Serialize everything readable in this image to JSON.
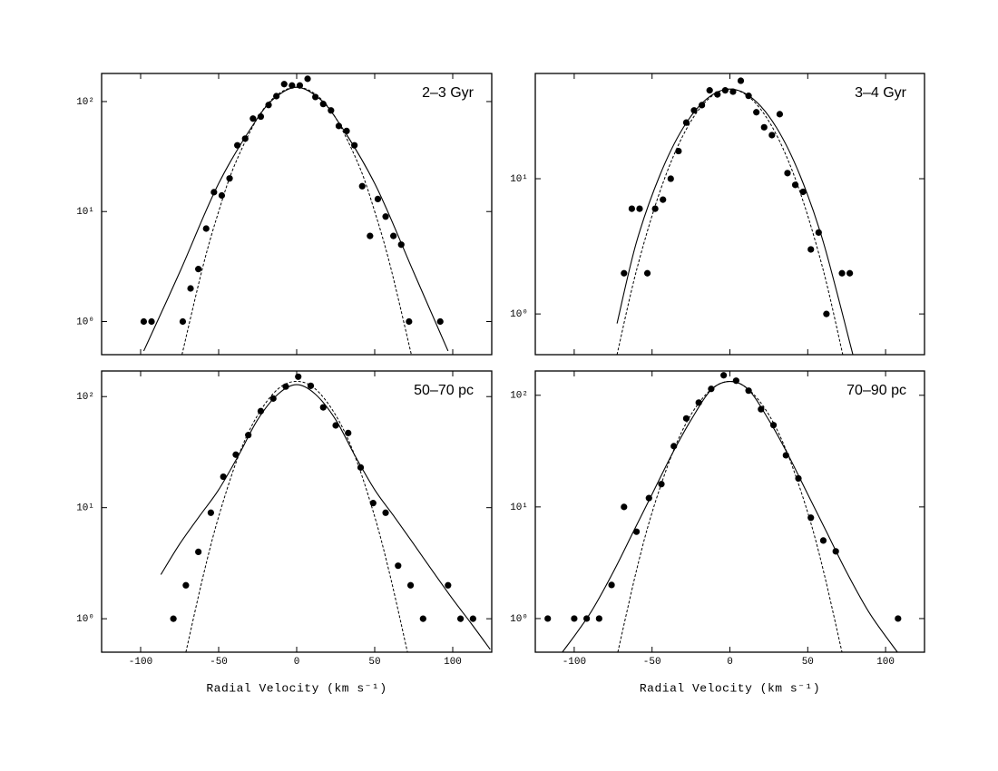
{
  "chart_data": [
    {
      "type": "scatter",
      "annotation": "2–3 Gyr",
      "yscale": "log",
      "xtick_labels": false,
      "xlim": [
        -125,
        125
      ],
      "ylim": [
        0.5,
        180
      ],
      "xticks": [
        -100,
        -50,
        0,
        50,
        100
      ],
      "yticks": [
        {
          "value": 1,
          "label": "10⁰"
        },
        {
          "value": 10,
          "label": "10¹"
        },
        {
          "value": 100,
          "label": "10²"
        }
      ],
      "series": [
        {
          "type": "scatter",
          "color": "#000000",
          "x": [
            -98,
            -93,
            -73,
            -68,
            -63,
            -58,
            -53,
            -48,
            -43,
            -38,
            -33,
            -28,
            -23,
            -18,
            -13,
            -8,
            -3,
            2,
            7,
            12,
            17,
            22,
            27,
            32,
            37,
            42,
            47,
            52,
            57,
            62,
            67,
            72,
            92
          ],
          "values": [
            1,
            1,
            1,
            2,
            3,
            7,
            15,
            14,
            20,
            40,
            46,
            70,
            73,
            93,
            112,
            144,
            140,
            140,
            161,
            110,
            95,
            83,
            60,
            54,
            40,
            17,
            6,
            13,
            9,
            6,
            5,
            1,
            1
          ]
        },
        {
          "type": "line",
          "dash": "solid",
          "color": "#000000",
          "x": [
            -98,
            -75,
            -50,
            -25,
            -12.5,
            0,
            12.5,
            25,
            50,
            75,
            97
          ],
          "values": [
            0.54,
            2.8,
            18,
            71,
            112,
            135,
            112,
            71,
            18,
            2.8,
            0.54
          ]
        },
        {
          "type": "line",
          "dash": "dashed",
          "color": "#000000",
          "x": [
            -73.5,
            -60,
            -50,
            -40,
            -25,
            -12.5,
            0,
            12.5,
            25,
            40,
            50,
            60,
            73.5
          ],
          "values": [
            0.5,
            3.2,
            10,
            26,
            71,
            115,
            135,
            115,
            71,
            26,
            10,
            3.2,
            0.5
          ]
        }
      ]
    },
    {
      "type": "scatter",
      "annotation": "3–4 Gyr",
      "yscale": "log",
      "xtick_labels": false,
      "xlim": [
        -125,
        125
      ],
      "ylim": [
        0.5,
        60
      ],
      "xticks": [
        -100,
        -50,
        0,
        50,
        100
      ],
      "yticks": [
        {
          "value": 1,
          "label": "10⁰"
        },
        {
          "value": 10,
          "label": "10¹"
        }
      ],
      "series": [
        {
          "type": "scatter",
          "color": "#000000",
          "x": [
            -68,
            -63,
            -58,
            -53,
            -48,
            -43,
            -38,
            -33,
            -28,
            -23,
            -18,
            -13,
            -8,
            -3,
            2,
            7,
            12,
            17,
            22,
            27,
            32,
            37,
            42,
            47,
            52,
            57,
            62,
            72,
            77
          ],
          "values": [
            2,
            6,
            6,
            2,
            6,
            7,
            10,
            16,
            26,
            32,
            35,
            45,
            42,
            45,
            44,
            53,
            41,
            31,
            24,
            21,
            30,
            11,
            9,
            8,
            3,
            4,
            1,
            2,
            2
          ]
        },
        {
          "type": "line",
          "dash": "solid",
          "color": "#000000",
          "x": [
            -72.5,
            -60,
            -45,
            -30,
            -15,
            0,
            15,
            30,
            45,
            60,
            79
          ],
          "values": [
            0.85,
            3.4,
            10.6,
            23.8,
            38.8,
            46,
            38.8,
            23.8,
            10.6,
            3.4,
            0.5
          ]
        },
        {
          "type": "line",
          "dash": "dashed",
          "color": "#000000",
          "x": [
            -72.5,
            -60,
            -45,
            -30,
            -15,
            0,
            15,
            30,
            45,
            60,
            72.5
          ],
          "values": [
            0.5,
            2.1,
            8,
            21,
            37.7,
            46,
            37.7,
            21,
            8,
            2.1,
            0.5
          ]
        }
      ]
    },
    {
      "type": "scatter",
      "annotation": "50–70 pc",
      "yscale": "log",
      "xtick_labels": true,
      "xlabel": "Radial Velocity (km s⁻¹)",
      "xlim": [
        -125,
        125
      ],
      "ylim": [
        0.5,
        170
      ],
      "xticks": [
        -100,
        -50,
        0,
        50,
        100
      ],
      "yticks": [
        {
          "value": 1,
          "label": "10⁰"
        },
        {
          "value": 10,
          "label": "10¹"
        },
        {
          "value": 100,
          "label": "10²"
        }
      ],
      "series": [
        {
          "type": "scatter",
          "color": "#000000",
          "x": [
            -79,
            -71,
            -63,
            -55,
            -47,
            -39,
            -31,
            -23,
            -15,
            -7,
            1,
            9,
            17,
            25,
            33,
            41,
            49,
            57,
            65,
            73,
            81,
            97,
            105,
            113
          ],
          "values": [
            1,
            2,
            4,
            9,
            19,
            30,
            45,
            74,
            96,
            123,
            151,
            125,
            80,
            55,
            47,
            23,
            11,
            9,
            3,
            2,
            1,
            2,
            1,
            1
          ]
        },
        {
          "type": "line",
          "dash": "solid",
          "color": "#000000",
          "x": [
            -87,
            -75,
            -62,
            -50,
            -37,
            -25,
            -12,
            0,
            12,
            25,
            37,
            50,
            62,
            75,
            87,
            100,
            112,
            124
          ],
          "values": [
            2.5,
            4.7,
            8.5,
            14.5,
            30,
            62,
            105,
            128,
            105,
            62,
            30,
            14.5,
            8.5,
            4.7,
            2.7,
            1.5,
            0.9,
            0.53
          ]
        },
        {
          "type": "line",
          "dash": "dashed",
          "color": "#000000",
          "x": [
            -71,
            -60,
            -50,
            -37,
            -25,
            -12,
            0,
            12,
            25,
            37,
            50,
            60,
            71
          ],
          "values": [
            0.5,
            2.4,
            8.3,
            30,
            68,
            117,
            137,
            117,
            68,
            30,
            8.3,
            2.4,
            0.5
          ]
        }
      ]
    },
    {
      "type": "scatter",
      "annotation": "70–90 pc",
      "yscale": "log",
      "xtick_labels": true,
      "xlabel": "Radial Velocity (km s⁻¹)",
      "xlim": [
        -125,
        125
      ],
      "ylim": [
        0.5,
        165
      ],
      "xticks": [
        -100,
        -50,
        0,
        50,
        100
      ],
      "yticks": [
        {
          "value": 1,
          "label": "10⁰"
        },
        {
          "value": 10,
          "label": "10¹"
        },
        {
          "value": 100,
          "label": "10²"
        }
      ],
      "series": [
        {
          "type": "scatter",
          "color": "#000000",
          "x": [
            -117,
            -100,
            -92,
            -84,
            -76,
            -68,
            -60,
            -52,
            -44,
            -36,
            -28,
            -20,
            -12,
            -4,
            4,
            12,
            20,
            28,
            36,
            44,
            52,
            60,
            68,
            108
          ],
          "values": [
            1,
            1,
            1,
            1,
            2,
            10,
            6,
            12,
            16,
            35,
            62,
            86,
            114,
            151,
            135,
            110,
            75,
            54,
            29,
            18,
            8,
            5,
            4,
            1
          ]
        },
        {
          "type": "line",
          "dash": "solid",
          "color": "#000000",
          "x": [
            -107.6,
            -90,
            -75,
            -62,
            -50,
            -37,
            -25,
            -12,
            0,
            12,
            25,
            37,
            50,
            62,
            75,
            90,
            107.6
          ],
          "values": [
            0.5,
            1.1,
            2.6,
            6,
            13,
            30,
            60,
            112,
            133,
            112,
            60,
            30,
            13,
            6,
            2.6,
            1.1,
            0.5
          ]
        },
        {
          "type": "line",
          "dash": "dashed",
          "color": "#000000",
          "x": [
            -72,
            -60,
            -50,
            -37,
            -25,
            -12,
            0,
            12,
            25,
            37,
            50,
            60,
            72
          ],
          "values": [
            0.5,
            2.7,
            8.9,
            30,
            67,
            113,
            133,
            113,
            67,
            30,
            8.9,
            2.7,
            0.5
          ]
        }
      ]
    }
  ]
}
